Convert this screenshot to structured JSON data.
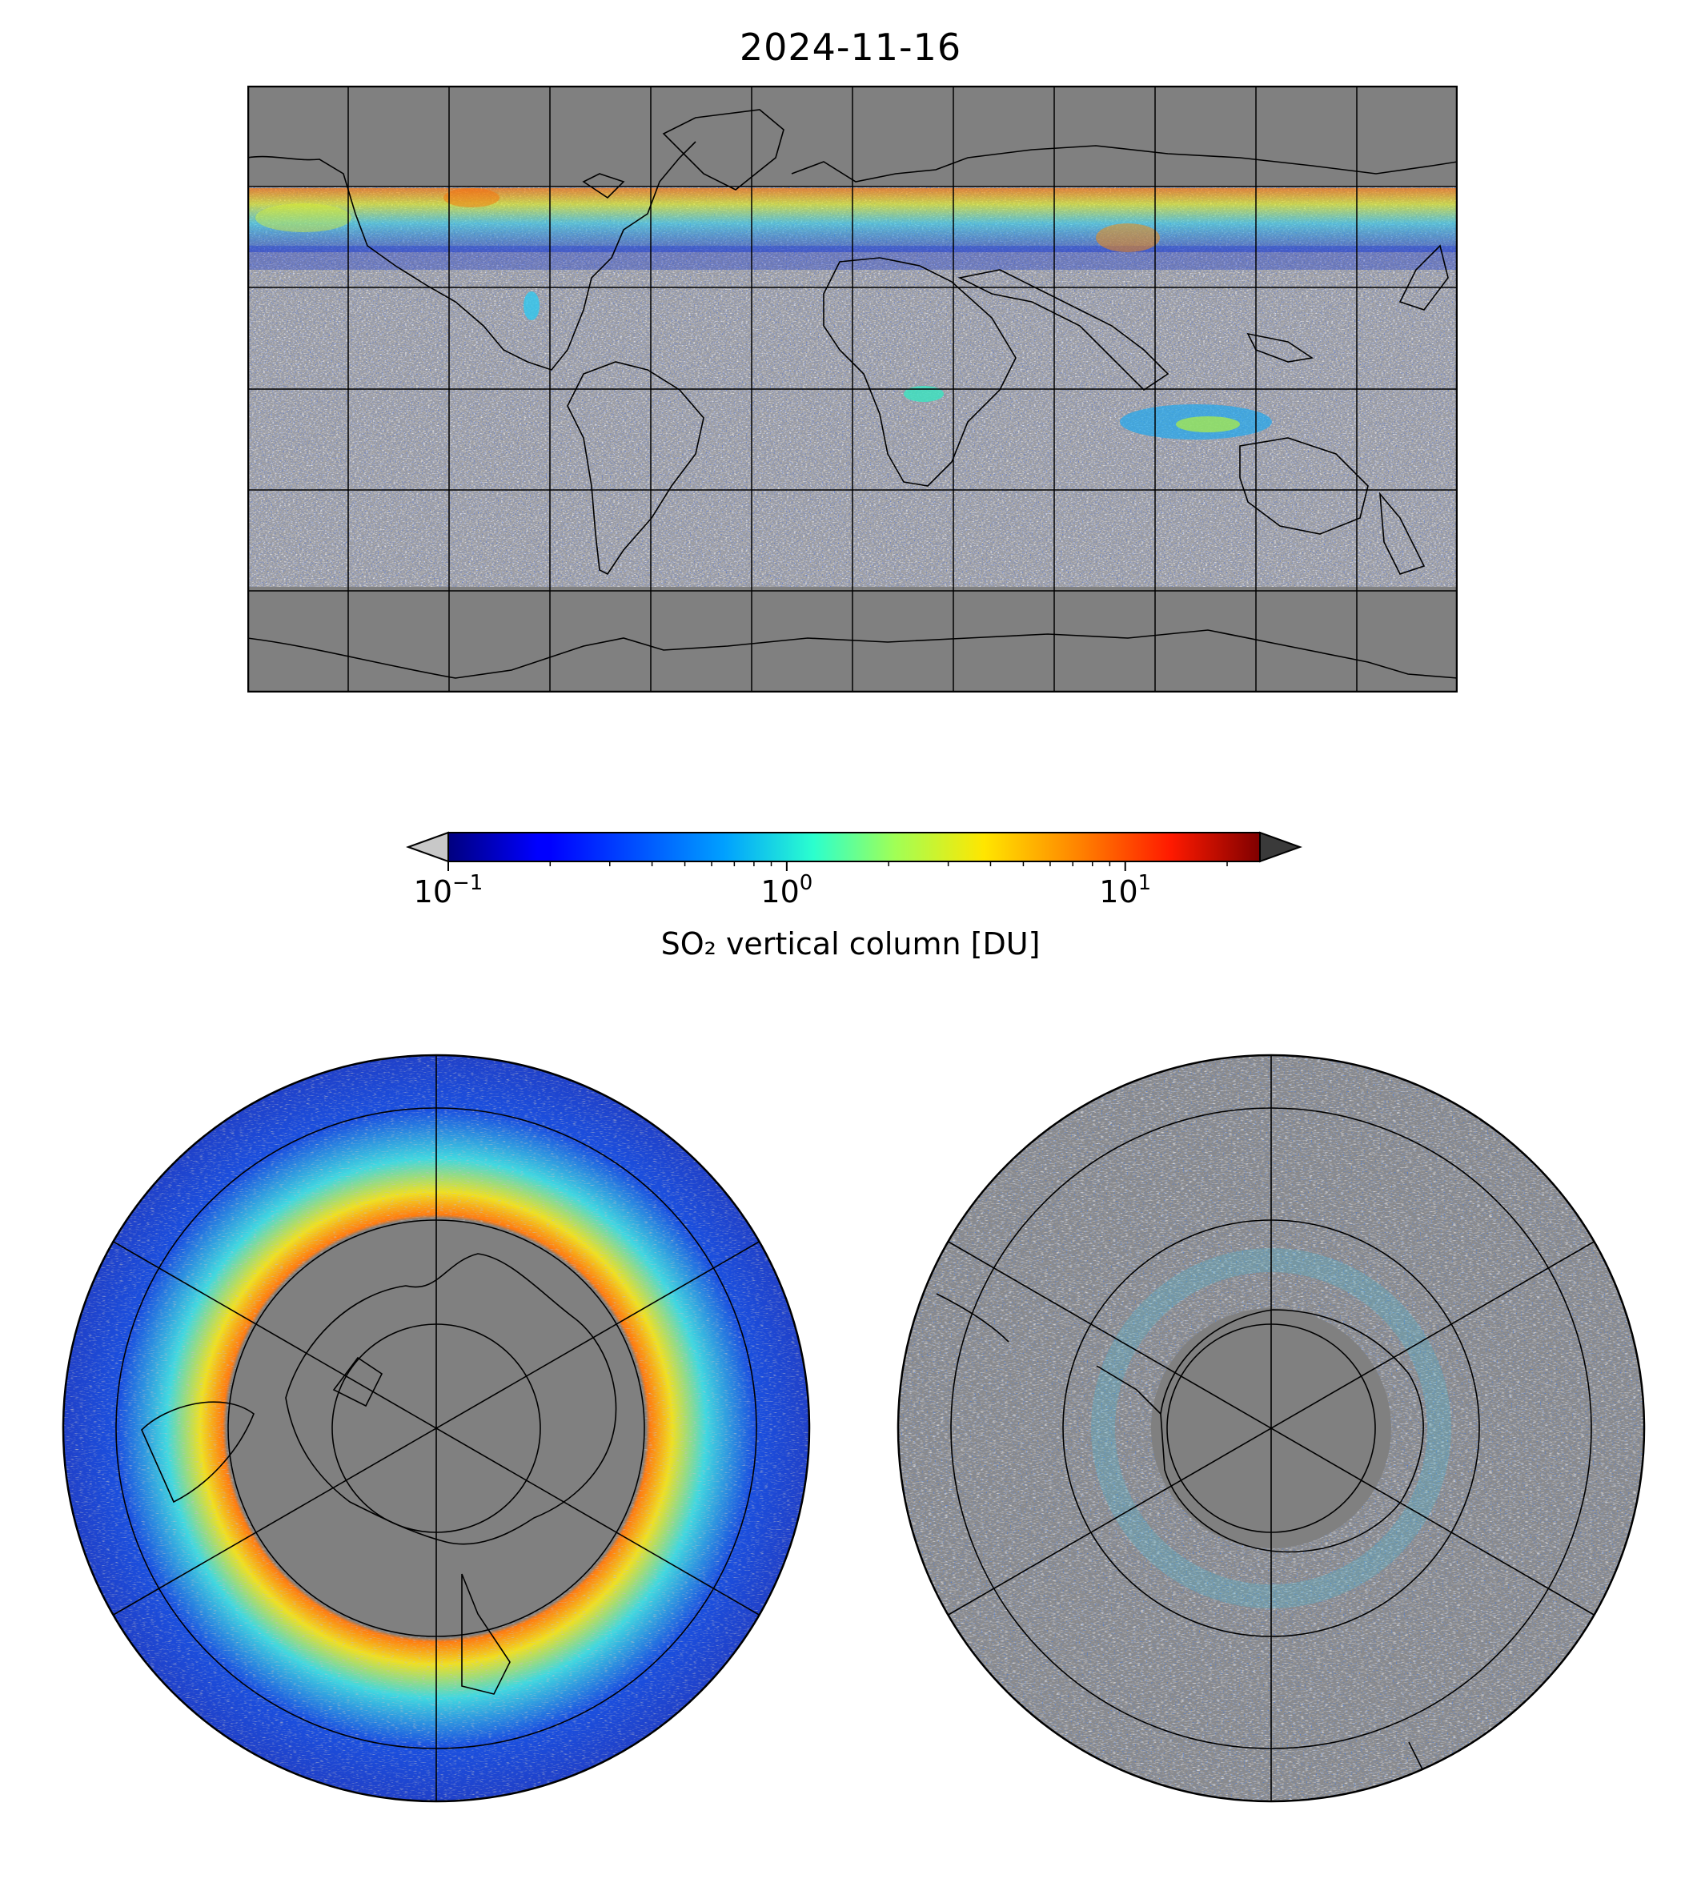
{
  "title": "2024-11-16",
  "colorbar": {
    "label": "SO₂ vertical column [DU]",
    "scale": "log",
    "range": [
      0.1,
      25
    ],
    "ticks": [
      {
        "value": 0.1,
        "base": "10",
        "exp": "−1"
      },
      {
        "value": 1,
        "base": "10",
        "exp": "0"
      },
      {
        "value": 10,
        "base": "10",
        "exp": "1"
      }
    ],
    "colormap": "jet",
    "under_color": "#c8c8c8",
    "over_color": "#3a3a3a",
    "extend": "both"
  },
  "maps": {
    "global": {
      "projection": "equirectangular",
      "graticule_lon_step": 30,
      "graticule_lat_step": 30
    },
    "north": {
      "projection": "north-polar-stereographic"
    },
    "south": {
      "projection": "south-polar-stereographic"
    }
  },
  "colors": {
    "no_data": "#808080",
    "below_range": "#c0c0c0",
    "coast": "#000000",
    "graticule": "#000000"
  }
}
